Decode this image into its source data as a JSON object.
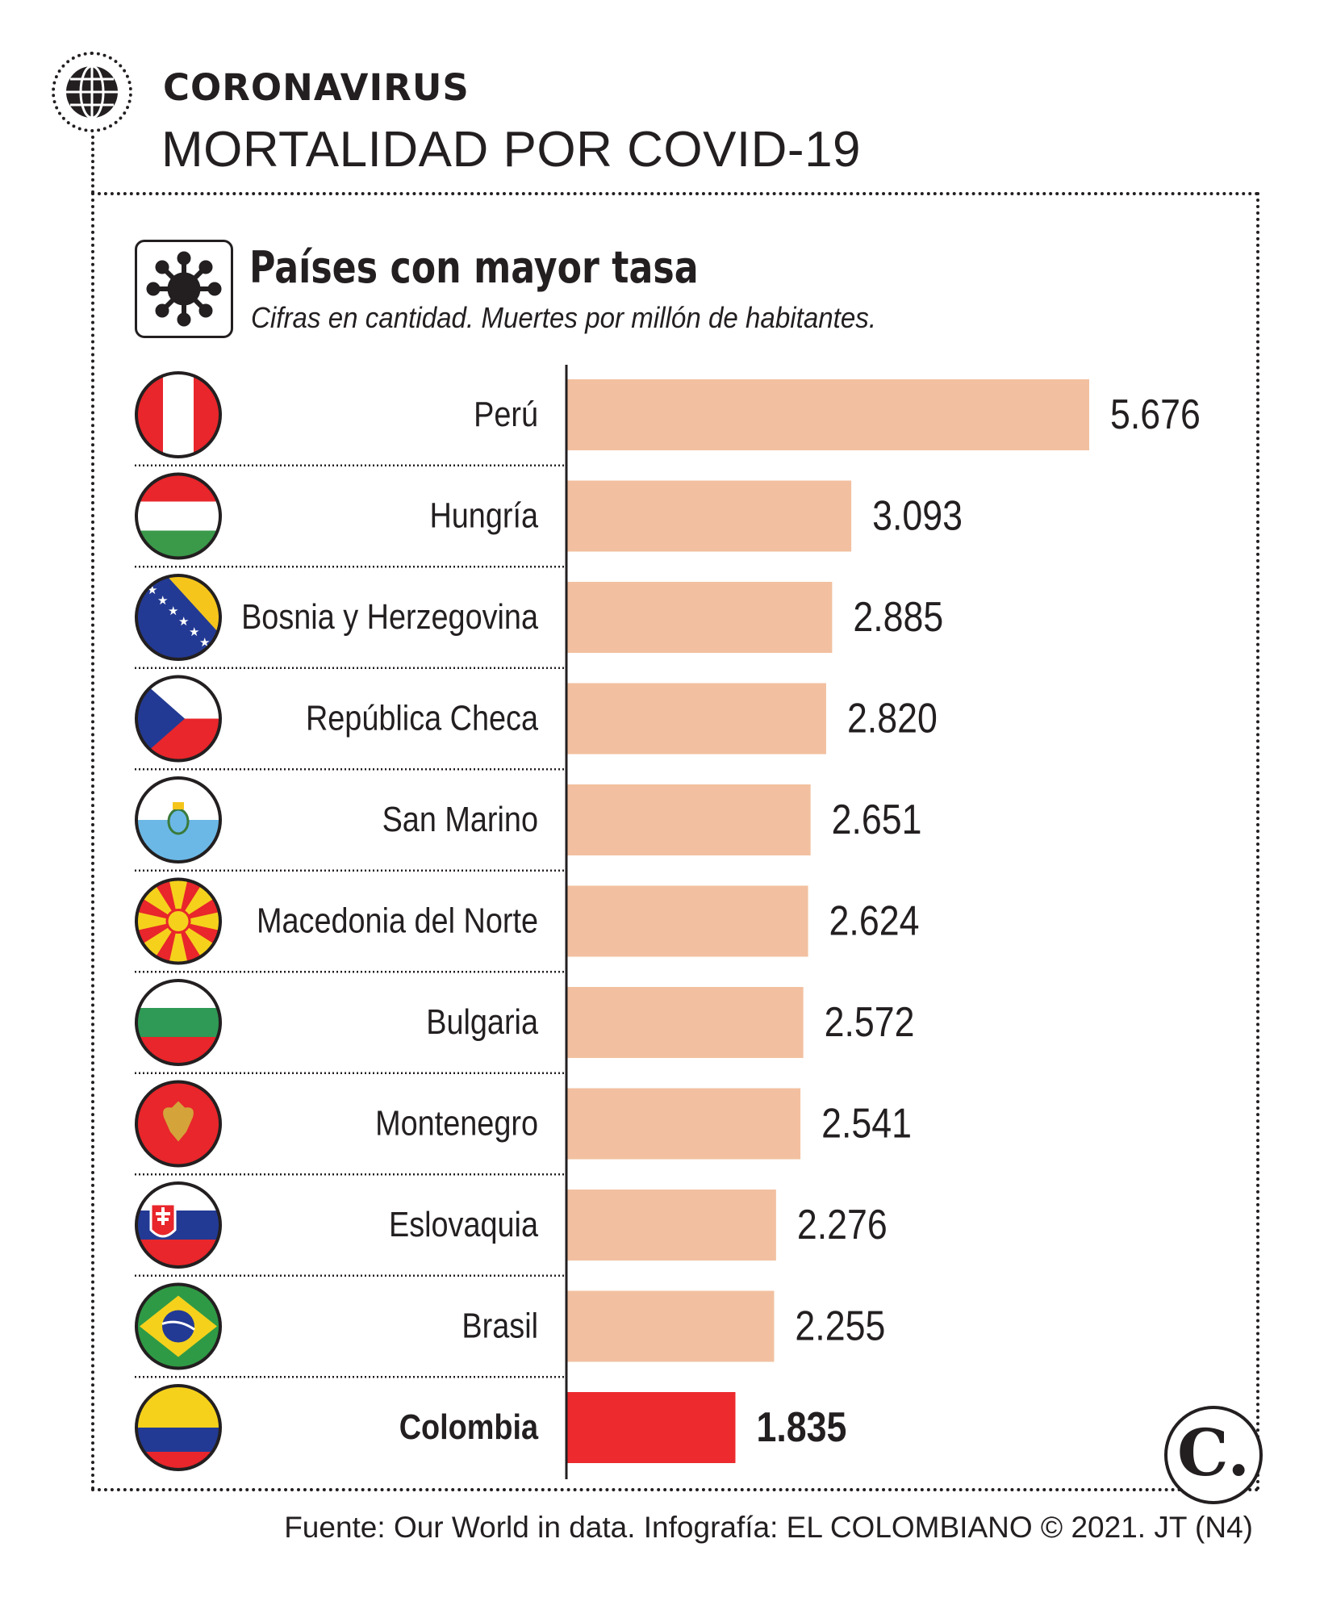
{
  "header": {
    "kicker": "CORONAVIRUS",
    "headline": "MORTALIDAD POR COVID-19"
  },
  "chart_data": {
    "type": "bar",
    "orientation": "horizontal",
    "title": "Países con mayor tasa",
    "subtitle": "Cifras en cantidad. Muertes por millón de habitantes.",
    "categories": [
      "Perú",
      "Hungría",
      "Bosnia y Herzegovina",
      "República Checa",
      "San Marino",
      "Macedonia del Norte",
      "Bulgaria",
      "Montenegro",
      "Eslovaquia",
      "Brasil",
      "Colombia"
    ],
    "values": [
      5676,
      3093,
      2885,
      2820,
      2651,
      2624,
      2572,
      2541,
      2276,
      2255,
      1835
    ],
    "value_labels": [
      "5.676",
      "3.093",
      "2.885",
      "2.820",
      "2.651",
      "2.624",
      "2.572",
      "2.541",
      "2.276",
      "2.255",
      "1.835"
    ],
    "highlight": "Colombia",
    "colors": {
      "bar": "#f2c0a0",
      "highlight": "#ed2a2e"
    },
    "xlim": [
      0,
      5676
    ],
    "grid": false
  },
  "icons": {
    "header": "globe-icon",
    "title": "virus-icon",
    "flags": [
      "flag-peru-icon",
      "flag-hungary-icon",
      "flag-bosnia-icon",
      "flag-czech-icon",
      "flag-san-marino-icon",
      "flag-north-macedonia-icon",
      "flag-bulgaria-icon",
      "flag-montenegro-icon",
      "flag-slovakia-icon",
      "flag-brazil-icon",
      "flag-colombia-icon"
    ],
    "logo": "el-colombiano-logo"
  },
  "logo_text": "C.",
  "source": "Fuente: Our World in data. Infografía: EL COLOMBIANO © 2021. JT (N4)"
}
